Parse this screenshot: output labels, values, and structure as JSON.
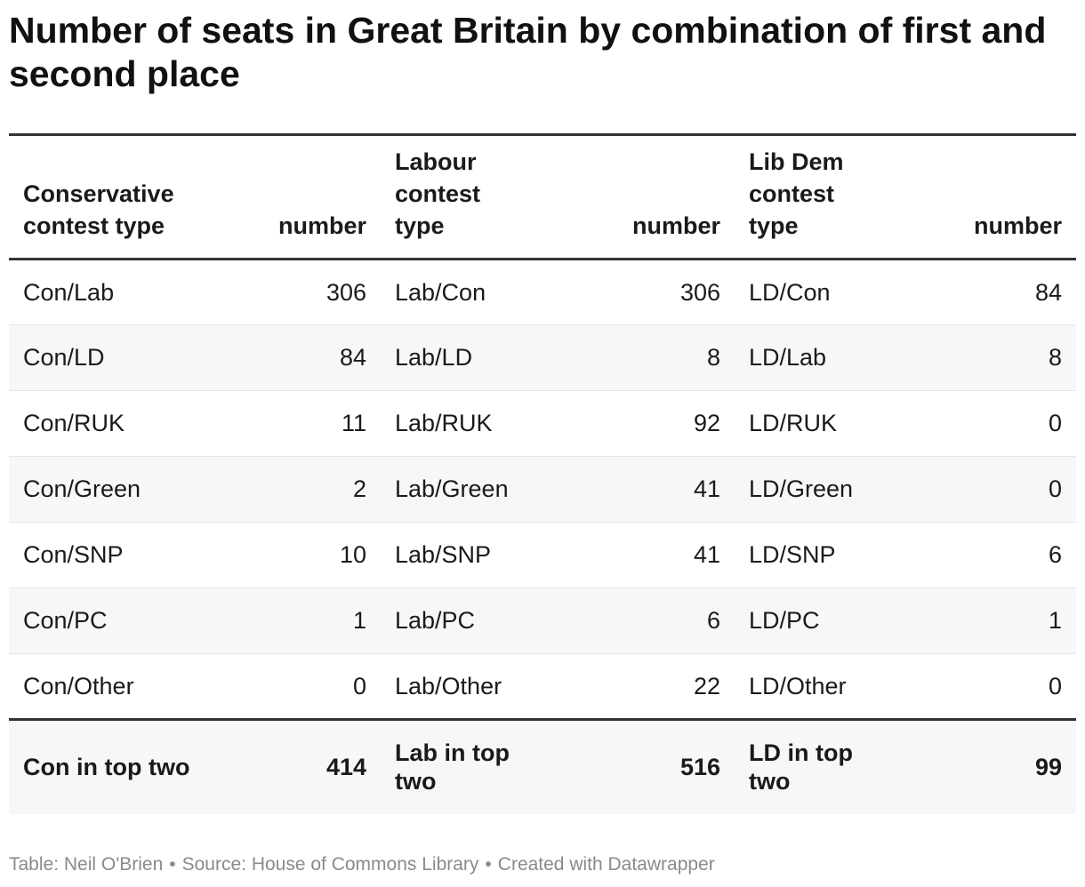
{
  "title": "Number of seats in Great Britain by combination of first and second place",
  "chart_data": {
    "type": "table",
    "title": "Number of seats in Great Britain by combination of first and second place",
    "columns": [
      "Conservative contest type",
      "number",
      "Labour contest type",
      "number",
      "Lib Dem contest type",
      "number"
    ],
    "rows": [
      {
        "con_type": "Con/Lab",
        "con_num": "306",
        "lab_type": "Lab/Con",
        "lab_num": "306",
        "ld_type": "LD/Con",
        "ld_num": "84"
      },
      {
        "con_type": "Con/LD",
        "con_num": "84",
        "lab_type": "Lab/LD",
        "lab_num": "8",
        "ld_type": "LD/Lab",
        "ld_num": "8"
      },
      {
        "con_type": "Con/RUK",
        "con_num": "11",
        "lab_type": "Lab/RUK",
        "lab_num": "92",
        "ld_type": "LD/RUK",
        "ld_num": "0"
      },
      {
        "con_type": "Con/Green",
        "con_num": "2",
        "lab_type": "Lab/Green",
        "lab_num": "41",
        "ld_type": "LD/Green",
        "ld_num": "0"
      },
      {
        "con_type": "Con/SNP",
        "con_num": "10",
        "lab_type": "Lab/SNP",
        "lab_num": "41",
        "ld_type": "LD/SNP",
        "ld_num": "6"
      },
      {
        "con_type": "Con/PC",
        "con_num": "1",
        "lab_type": "Lab/PC",
        "lab_num": "6",
        "ld_type": "LD/PC",
        "ld_num": "1"
      },
      {
        "con_type": "Con/Other",
        "con_num": "0",
        "lab_type": "Lab/Other",
        "lab_num": "22",
        "ld_type": "LD/Other",
        "ld_num": "0"
      }
    ],
    "totals": {
      "con_label": "Con in top two",
      "con_num": "414",
      "lab_label": "Lab in top two",
      "lab_num": "516",
      "ld_label": "LD in top two",
      "ld_num": "99"
    }
  },
  "footer": {
    "table_credit": "Table: Neil O'Brien",
    "source": "Source: House of Commons Library",
    "created": "Created with Datawrapper",
    "separator": "•"
  },
  "colors": {
    "text": "#1a1a1a",
    "rule": "#333333",
    "stripe": "#f7f7f7",
    "footer_text": "#8a8a8a"
  }
}
